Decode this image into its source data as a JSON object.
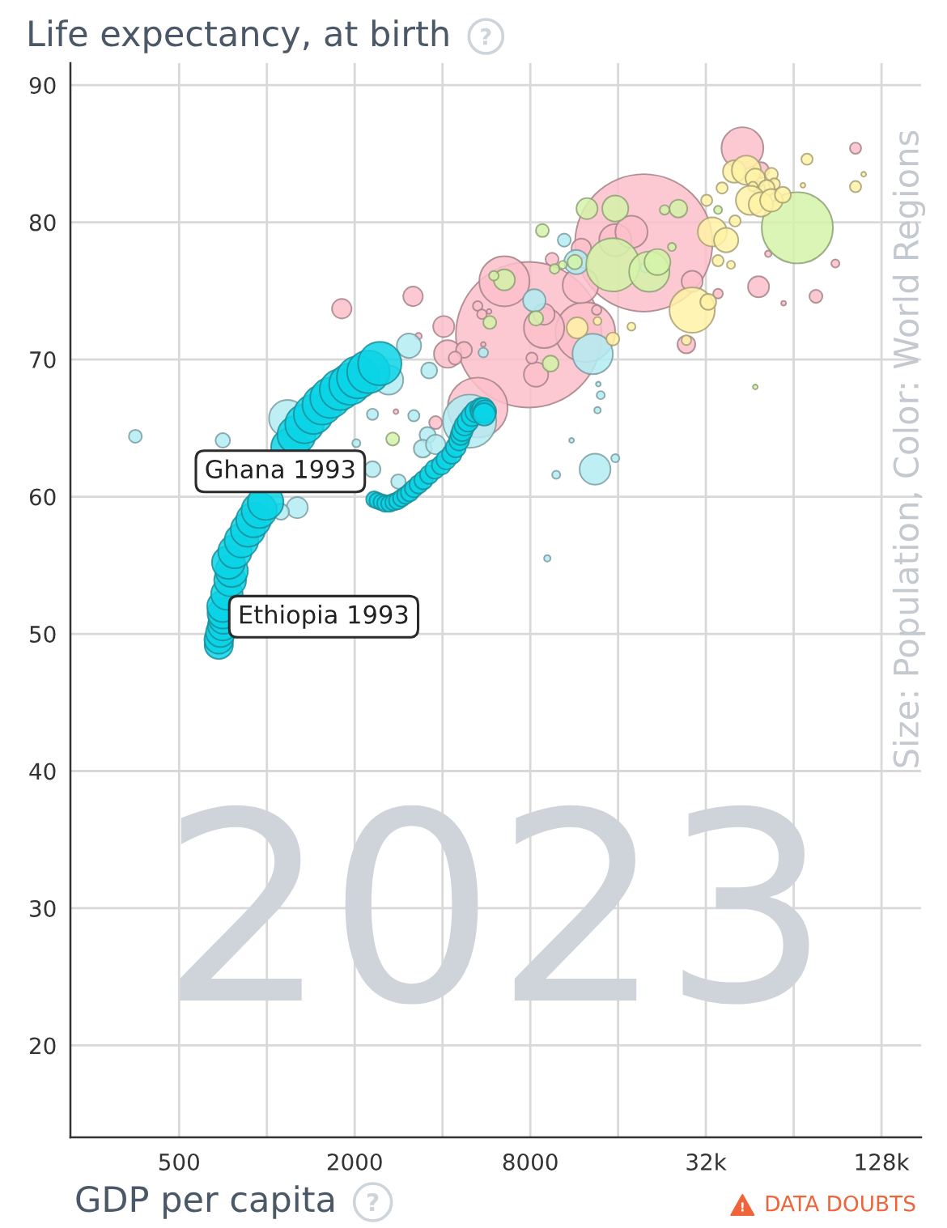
{
  "chart_data": {
    "type": "bubble",
    "ylabel": "Life expectancy, at birth",
    "xlabel": "GDP per capita",
    "annotations": [
      "Size: Population, Color: World Regions",
      "2023",
      "DATA DOUBTS",
      {
        "text": "Ghana 1993",
        "x": 2332,
        "y": 59.8
      },
      {
        "text": "Ethiopia 1993",
        "x": 684,
        "y": 49.2
      }
    ],
    "log": "x",
    "grid": true,
    "marker": "circle",
    "xlim": [
      212,
      175000
    ],
    "ylim": [
      13.3,
      91.6
    ],
    "xticks": [
      500,
      {
        "value": 1000,
        "label": null
      },
      2000,
      {
        "value": 4000,
        "label": null
      },
      8000,
      {
        "value": 16000,
        "label": null
      },
      {
        "value": 32000,
        "label": "32k"
      },
      {
        "value": 64000,
        "label": null
      },
      {
        "value": 128000,
        "label": "128k"
      }
    ],
    "yticks": [
      20,
      30,
      40,
      50,
      60,
      70,
      80,
      90
    ],
    "series": [
      {
        "color": "#fcbfca",
        "x": [
          7900,
          19600,
          42700,
          12350,
          6520,
          5280,
          8920,
          11890,
          15650,
          17780,
          1806,
          3170,
          4040,
          4170,
          4740,
          4420,
          5280,
          5460,
          5780,
          8920,
          8370,
          8100,
          11970,
          9500,
          13510,
          28710,
          27440,
          35220,
          48490,
          76300,
          88940,
          52350,
          104300,
          49400,
          3790,
          3310,
          2770,
          5520,
          59100
        ],
        "values": [
          71.8,
          78.5,
          85.4,
          72.0,
          75.7,
          66.5,
          72.3,
          75.4,
          78.7,
          79.3,
          73.7,
          74.6,
          72.4,
          70.4,
          70.7,
          70.1,
          73.9,
          73.3,
          73.5,
          73.3,
          68.9,
          70.1,
          78.1,
          77.3,
          73.6,
          75.7,
          71.1,
          74.8,
          75.3,
          74.6,
          77.0,
          77.7,
          85.4,
          83.8,
          65.4,
          71.7,
          66.2,
          71.1,
          74.1
        ],
        "sizes": [
          1,
          0.89,
          0.083,
          0.169,
          0.119,
          0.169,
          0.077,
          0.06,
          0.049,
          0.049,
          0.018,
          0.018,
          0.021,
          0.036,
          0.012,
          0.008,
          0.0044,
          0.0044,
          0.0011,
          0.021,
          0.028,
          0.006,
          0.018,
          0.008,
          0.0044,
          0.021,
          0.015,
          0.0044,
          0.021,
          0.008,
          0.0031,
          0.002,
          0.006,
          0.012,
          0.008,
          0.002,
          0.0011,
          0.0011,
          0.0011
        ]
      },
      {
        "color": "#b2ecf3",
        "x": [
          4954,
          13090,
          1177,
          13340,
          2616,
          354,
          706,
          1271,
          1118,
          3070,
          3600,
          3190,
          2302,
          3556,
          3422,
          3792,
          2824,
          2302,
          2026,
          8260,
          11510,
          10460,
          5520,
          13950,
          13600,
          13690,
          15650,
          9815,
          9150,
          19820,
          11080
        ],
        "values": [
          65.5,
          70.4,
          65.7,
          62.0,
          68.5,
          64.4,
          64.1,
          59.2,
          58.9,
          71.0,
          69.2,
          65.9,
          66.0,
          64.5,
          63.5,
          63.8,
          61.1,
          62.0,
          63.9,
          74.3,
          77.1,
          78.7,
          70.5,
          67.4,
          66.3,
          68.2,
          62.8,
          61.6,
          55.5,
          76.7,
          64.1
        ],
        "sizes": [
          0.134,
          0.077,
          0.065,
          0.045,
          0.04,
          0.008,
          0.01,
          0.021,
          0.012,
          0.028,
          0.012,
          0.006,
          0.006,
          0.012,
          0.015,
          0.018,
          0.01,
          0.012,
          0.0031,
          0.024,
          0.028,
          0.008,
          0.0044,
          0.0031,
          0.002,
          0.0011,
          0.0031,
          0.0031,
          0.002,
          0.0044,
          0.0011
        ]
      },
      {
        "color": "#d4f3a8",
        "x": [
          65870,
          15350,
          20470,
          21830,
          25760,
          23100,
          15650,
          12520,
          11370,
          8800,
          9690,
          10330,
          8370,
          6520,
          6000,
          9390,
          5810,
          2700,
          35220,
          24470,
          48490,
          47270
        ],
        "values": [
          79.6,
          76.9,
          76.4,
          77.1,
          81.0,
          80.9,
          81.0,
          81.0,
          77.1,
          79.4,
          76.6,
          76.9,
          73.0,
          75.8,
          76.1,
          69.7,
          72.7,
          64.2,
          80.9,
          78.2,
          82.5,
          68.0
        ],
        "sizes": [
          0.239,
          0.134,
          0.077,
          0.032,
          0.015,
          0.0044,
          0.032,
          0.021,
          0.01,
          0.008,
          0.0044,
          0.0031,
          0.01,
          0.021,
          0.0044,
          0.012,
          0.008,
          0.008,
          0.0031,
          0.0031,
          0.008,
          0.0011
        ]
      },
      {
        "color": "#fff2a6",
        "x": [
          28710,
          32600,
          33680,
          37550,
          35220,
          39010,
          32200,
          36360,
          40280,
          40030,
          44050,
          47270,
          53670,
          54960,
          51690,
          46360,
          45480,
          49400,
          53670,
          58750,
          71110,
          104300,
          11590,
          15350,
          13600,
          17780,
          27440,
          68870,
          111200
        ],
        "values": [
          73.6,
          74.2,
          79.3,
          78.7,
          77.2,
          76.9,
          81.6,
          82.5,
          80.1,
          83.7,
          83.8,
          83.2,
          83.5,
          82.8,
          82.5,
          82.6,
          81.6,
          81.3,
          81.6,
          82.0,
          84.6,
          82.6,
          72.3,
          71.5,
          72.8,
          72.4,
          71.4,
          82.7,
          83.5
        ],
        "sizes": [
          0.097,
          0.012,
          0.04,
          0.028,
          0.006,
          0.0031,
          0.006,
          0.006,
          0.006,
          0.024,
          0.04,
          0.018,
          0.008,
          0.006,
          0.012,
          0.0044,
          0.04,
          0.028,
          0.024,
          0.012,
          0.006,
          0.006,
          0.021,
          0.008,
          0.0031,
          0.0031,
          0.0044,
          0.0011,
          0.0011
        ]
      },
      {
        "color": "#0bd4e6",
        "x": [
          684,
          684,
          693,
          706,
          711,
          706,
          706,
          729,
          748,
          757,
          738,
          777,
          818,
          861,
          900,
          941,
          990,
          1049,
          1104,
          1155,
          1200,
          1263,
          1346,
          1444,
          1549,
          1651,
          1783,
          1925,
          2052,
          2229,
          2438
        ],
        "values": [
          49.2,
          49.6,
          50.1,
          50.6,
          51.1,
          51.5,
          52.0,
          52.9,
          53.9,
          54.6,
          55.2,
          56.0,
          56.8,
          57.6,
          58.3,
          59.0,
          59.6,
          null,
          null,
          null,
          63.6,
          64.5,
          65.3,
          66.0,
          66.7,
          67.2,
          67.8,
          68.2,
          68.7,
          69.1,
          69.7
        ],
        "sizes": [
          0.038,
          0.039,
          0.04,
          0.042,
          0.043,
          0.044,
          0.046,
          0.047,
          0.048,
          0.05,
          0.051,
          0.053,
          0.054,
          0.056,
          0.057,
          0.059,
          0.06,
          null,
          null,
          null,
          0.067,
          0.069,
          0.071,
          0.073,
          0.075,
          0.077,
          0.079,
          0.081,
          0.084,
          0.086,
          0.089
        ]
      },
      {
        "color": "#0bd4e6",
        "x": [
          2332,
          2392,
          2470,
          2550,
          2632,
          2718,
          2806,
          2897,
          2991,
          3088,
          3188,
          3313,
          3442,
          3599,
          3764,
          3962,
          4117,
          4305,
          4445,
          4560,
          4619,
          4678,
          4769,
          4892,
          5051,
          5214,
          5418,
          5453,
          5523,
          5594,
          5558
        ],
        "values": [
          59.8,
          59.7,
          59.6,
          59.5,
          59.5,
          59.6,
          59.7,
          59.9,
          60.1,
          60.3,
          60.6,
          60.9,
          61.2,
          61.6,
          62.0,
          62.3,
          62.7,
          63.1,
          63.6,
          64.1,
          64.5,
          64.8,
          65.2,
          65.5,
          65.9,
          66.2,
          66.4,
          66.2,
          66.4,
          66.2,
          66.0
        ],
        "sizes": [
          0.012,
          0.012,
          0.012,
          0.013,
          0.013,
          0.013,
          0.014,
          0.014,
          0.014,
          0.015,
          0.015,
          0.016,
          0.016,
          0.016,
          0.017,
          0.017,
          0.018,
          0.018,
          0.019,
          0.019,
          0.019,
          0.02,
          0.02,
          0.021,
          0.021,
          0.022,
          0.022,
          0.023,
          0.023,
          0.024,
          0.024
        ]
      }
    ]
  }
}
